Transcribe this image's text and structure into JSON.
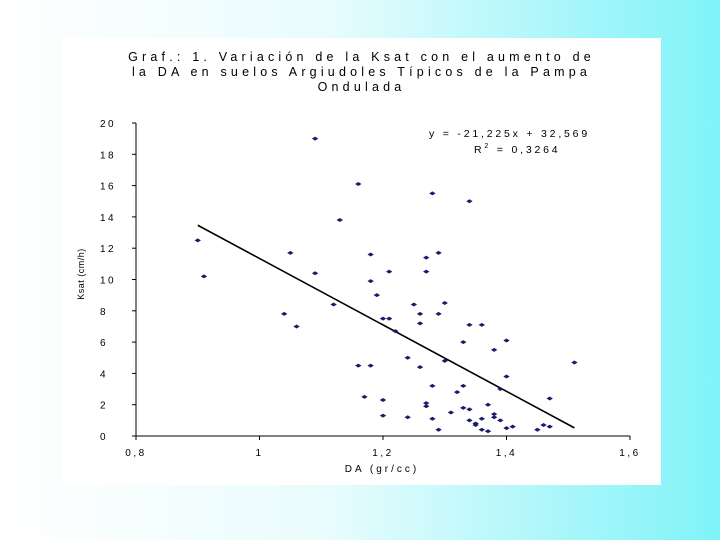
{
  "chart_data": {
    "type": "scatter",
    "title_lines": [
      "Graf.: 1. Variación de la Ksat con el aumento de",
      "la DA en suelos Argiudoles Típicos de la Pampa",
      "Ondulada"
    ],
    "xlabel": "DA (gr/cc)",
    "ylabel": "Ksat (cm/h)",
    "xlim": [
      0.8,
      1.6
    ],
    "ylim": [
      0,
      20
    ],
    "x_ticks": [
      0.8,
      1.0,
      1.2,
      1.4,
      1.6
    ],
    "x_tick_labels": [
      "0,8",
      "1",
      "1,2",
      "1,4",
      "1,6"
    ],
    "y_ticks": [
      0,
      2,
      4,
      6,
      8,
      10,
      12,
      14,
      16,
      18,
      20
    ],
    "y_tick_labels": [
      "0",
      "2",
      "4",
      "6",
      "8",
      "10",
      "12",
      "14",
      "16",
      "18",
      "20"
    ],
    "grid": false,
    "legend": "none",
    "marker_color": "#1a1a6e",
    "trendline": {
      "slope": -21.225,
      "intercept": 32.569,
      "x_range": [
        0.9,
        1.51
      ]
    },
    "equation_text": "y = -21,225x + 32,569",
    "r2_prefix": "R",
    "r2_sup": "2",
    "r2_suffix": " = 0,3264",
    "points": [
      [
        0.9,
        12.5
      ],
      [
        0.91,
        10.2
      ],
      [
        1.04,
        7.8
      ],
      [
        1.05,
        11.7
      ],
      [
        1.06,
        7.0
      ],
      [
        1.09,
        19.0
      ],
      [
        1.09,
        10.4
      ],
      [
        1.12,
        8.4
      ],
      [
        1.13,
        13.8
      ],
      [
        1.16,
        16.1
      ],
      [
        1.16,
        4.5
      ],
      [
        1.17,
        2.5
      ],
      [
        1.18,
        11.6
      ],
      [
        1.18,
        9.9
      ],
      [
        1.18,
        4.5
      ],
      [
        1.19,
        9.0
      ],
      [
        1.2,
        7.5
      ],
      [
        1.2,
        2.3
      ],
      [
        1.2,
        1.3
      ],
      [
        1.21,
        10.5
      ],
      [
        1.21,
        7.5
      ],
      [
        1.22,
        6.7
      ],
      [
        1.24,
        5.0
      ],
      [
        1.24,
        1.2
      ],
      [
        1.25,
        8.4
      ],
      [
        1.26,
        7.8
      ],
      [
        1.26,
        7.2
      ],
      [
        1.26,
        4.4
      ],
      [
        1.27,
        11.4
      ],
      [
        1.27,
        10.5
      ],
      [
        1.27,
        2.1
      ],
      [
        1.27,
        1.9
      ],
      [
        1.28,
        15.5
      ],
      [
        1.28,
        3.2
      ],
      [
        1.28,
        1.1
      ],
      [
        1.29,
        11.7
      ],
      [
        1.29,
        7.8
      ],
      [
        1.29,
        0.4
      ],
      [
        1.3,
        8.5
      ],
      [
        1.3,
        4.8
      ],
      [
        1.31,
        1.5
      ],
      [
        1.32,
        2.8
      ],
      [
        1.33,
        6.0
      ],
      [
        1.33,
        3.2
      ],
      [
        1.33,
        1.8
      ],
      [
        1.34,
        15.0
      ],
      [
        1.34,
        7.1
      ],
      [
        1.34,
        1.7
      ],
      [
        1.34,
        1.0
      ],
      [
        1.35,
        0.7
      ],
      [
        1.35,
        0.8
      ],
      [
        1.36,
        7.1
      ],
      [
        1.36,
        1.1
      ],
      [
        1.36,
        0.4
      ],
      [
        1.37,
        2.0
      ],
      [
        1.37,
        0.3
      ],
      [
        1.38,
        5.5
      ],
      [
        1.38,
        1.4
      ],
      [
        1.38,
        1.2
      ],
      [
        1.39,
        3.0
      ],
      [
        1.39,
        1.0
      ],
      [
        1.4,
        6.1
      ],
      [
        1.4,
        3.8
      ],
      [
        1.4,
        0.5
      ],
      [
        1.41,
        0.6
      ],
      [
        1.45,
        0.4
      ],
      [
        1.46,
        0.7
      ],
      [
        1.47,
        2.4
      ],
      [
        1.47,
        0.6
      ],
      [
        1.51,
        4.7
      ]
    ]
  }
}
